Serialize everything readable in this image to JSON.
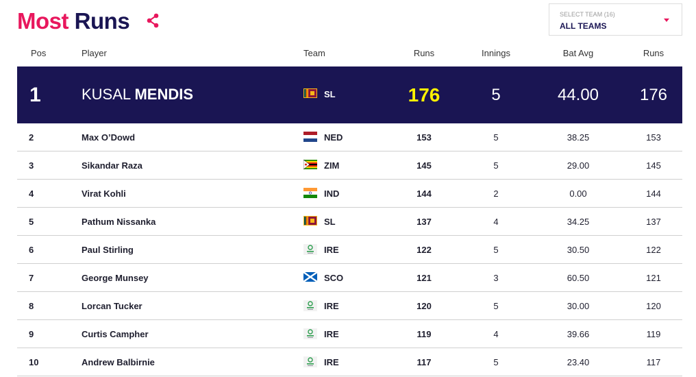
{
  "title": {
    "word1": "Most",
    "word2": "Runs"
  },
  "icons": {
    "share": "share-icon",
    "dropdown": "caret-down-icon"
  },
  "team_select": {
    "label": "SELECT TEAM (16)",
    "value": "ALL TEAMS"
  },
  "columns": {
    "pos": "Pos",
    "player": "Player",
    "team": "Team",
    "runs": "Runs",
    "innings": "Innings",
    "bat_avg": "Bat Avg",
    "runs2": "Runs"
  },
  "leader": {
    "pos": "1",
    "first_name": "KUSAL",
    "last_name": "MENDIS",
    "flag": "sri-lanka-flag",
    "team": "SL",
    "runs": "176",
    "innings": "5",
    "bat_avg": "44.00",
    "runs2": "176"
  },
  "rows": [
    {
      "pos": "2",
      "player": "Max O’Dowd",
      "flag": "netherlands-flag",
      "team": "NED",
      "runs": "153",
      "innings": "5",
      "bat_avg": "38.25",
      "runs2": "153"
    },
    {
      "pos": "3",
      "player": "Sikandar Raza",
      "flag": "zimbabwe-flag",
      "team": "ZIM",
      "runs": "145",
      "innings": "5",
      "bat_avg": "29.00",
      "runs2": "145"
    },
    {
      "pos": "4",
      "player": "Virat Kohli",
      "flag": "india-flag",
      "team": "IND",
      "runs": "144",
      "innings": "2",
      "bat_avg": "0.00",
      "runs2": "144"
    },
    {
      "pos": "5",
      "player": "Pathum Nissanka",
      "flag": "sri-lanka-flag",
      "team": "SL",
      "runs": "137",
      "innings": "4",
      "bat_avg": "34.25",
      "runs2": "137"
    },
    {
      "pos": "6",
      "player": "Paul Stirling",
      "flag": "ireland-logo",
      "team": "IRE",
      "runs": "122",
      "innings": "5",
      "bat_avg": "30.50",
      "runs2": "122"
    },
    {
      "pos": "7",
      "player": "George Munsey",
      "flag": "scotland-flag",
      "team": "SCO",
      "runs": "121",
      "innings": "3",
      "bat_avg": "60.50",
      "runs2": "121"
    },
    {
      "pos": "8",
      "player": "Lorcan Tucker",
      "flag": "ireland-logo",
      "team": "IRE",
      "runs": "120",
      "innings": "5",
      "bat_avg": "30.00",
      "runs2": "120"
    },
    {
      "pos": "9",
      "player": "Curtis Campher",
      "flag": "ireland-logo",
      "team": "IRE",
      "runs": "119",
      "innings": "4",
      "bat_avg": "39.66",
      "runs2": "119"
    },
    {
      "pos": "10",
      "player": "Andrew Balbirnie",
      "flag": "ireland-logo",
      "team": "IRE",
      "runs": "117",
      "innings": "5",
      "bat_avg": "23.40",
      "runs2": "117"
    }
  ],
  "colors": {
    "pink": "#e8175d",
    "navy": "#1a1553",
    "highlight": "#fff200"
  }
}
